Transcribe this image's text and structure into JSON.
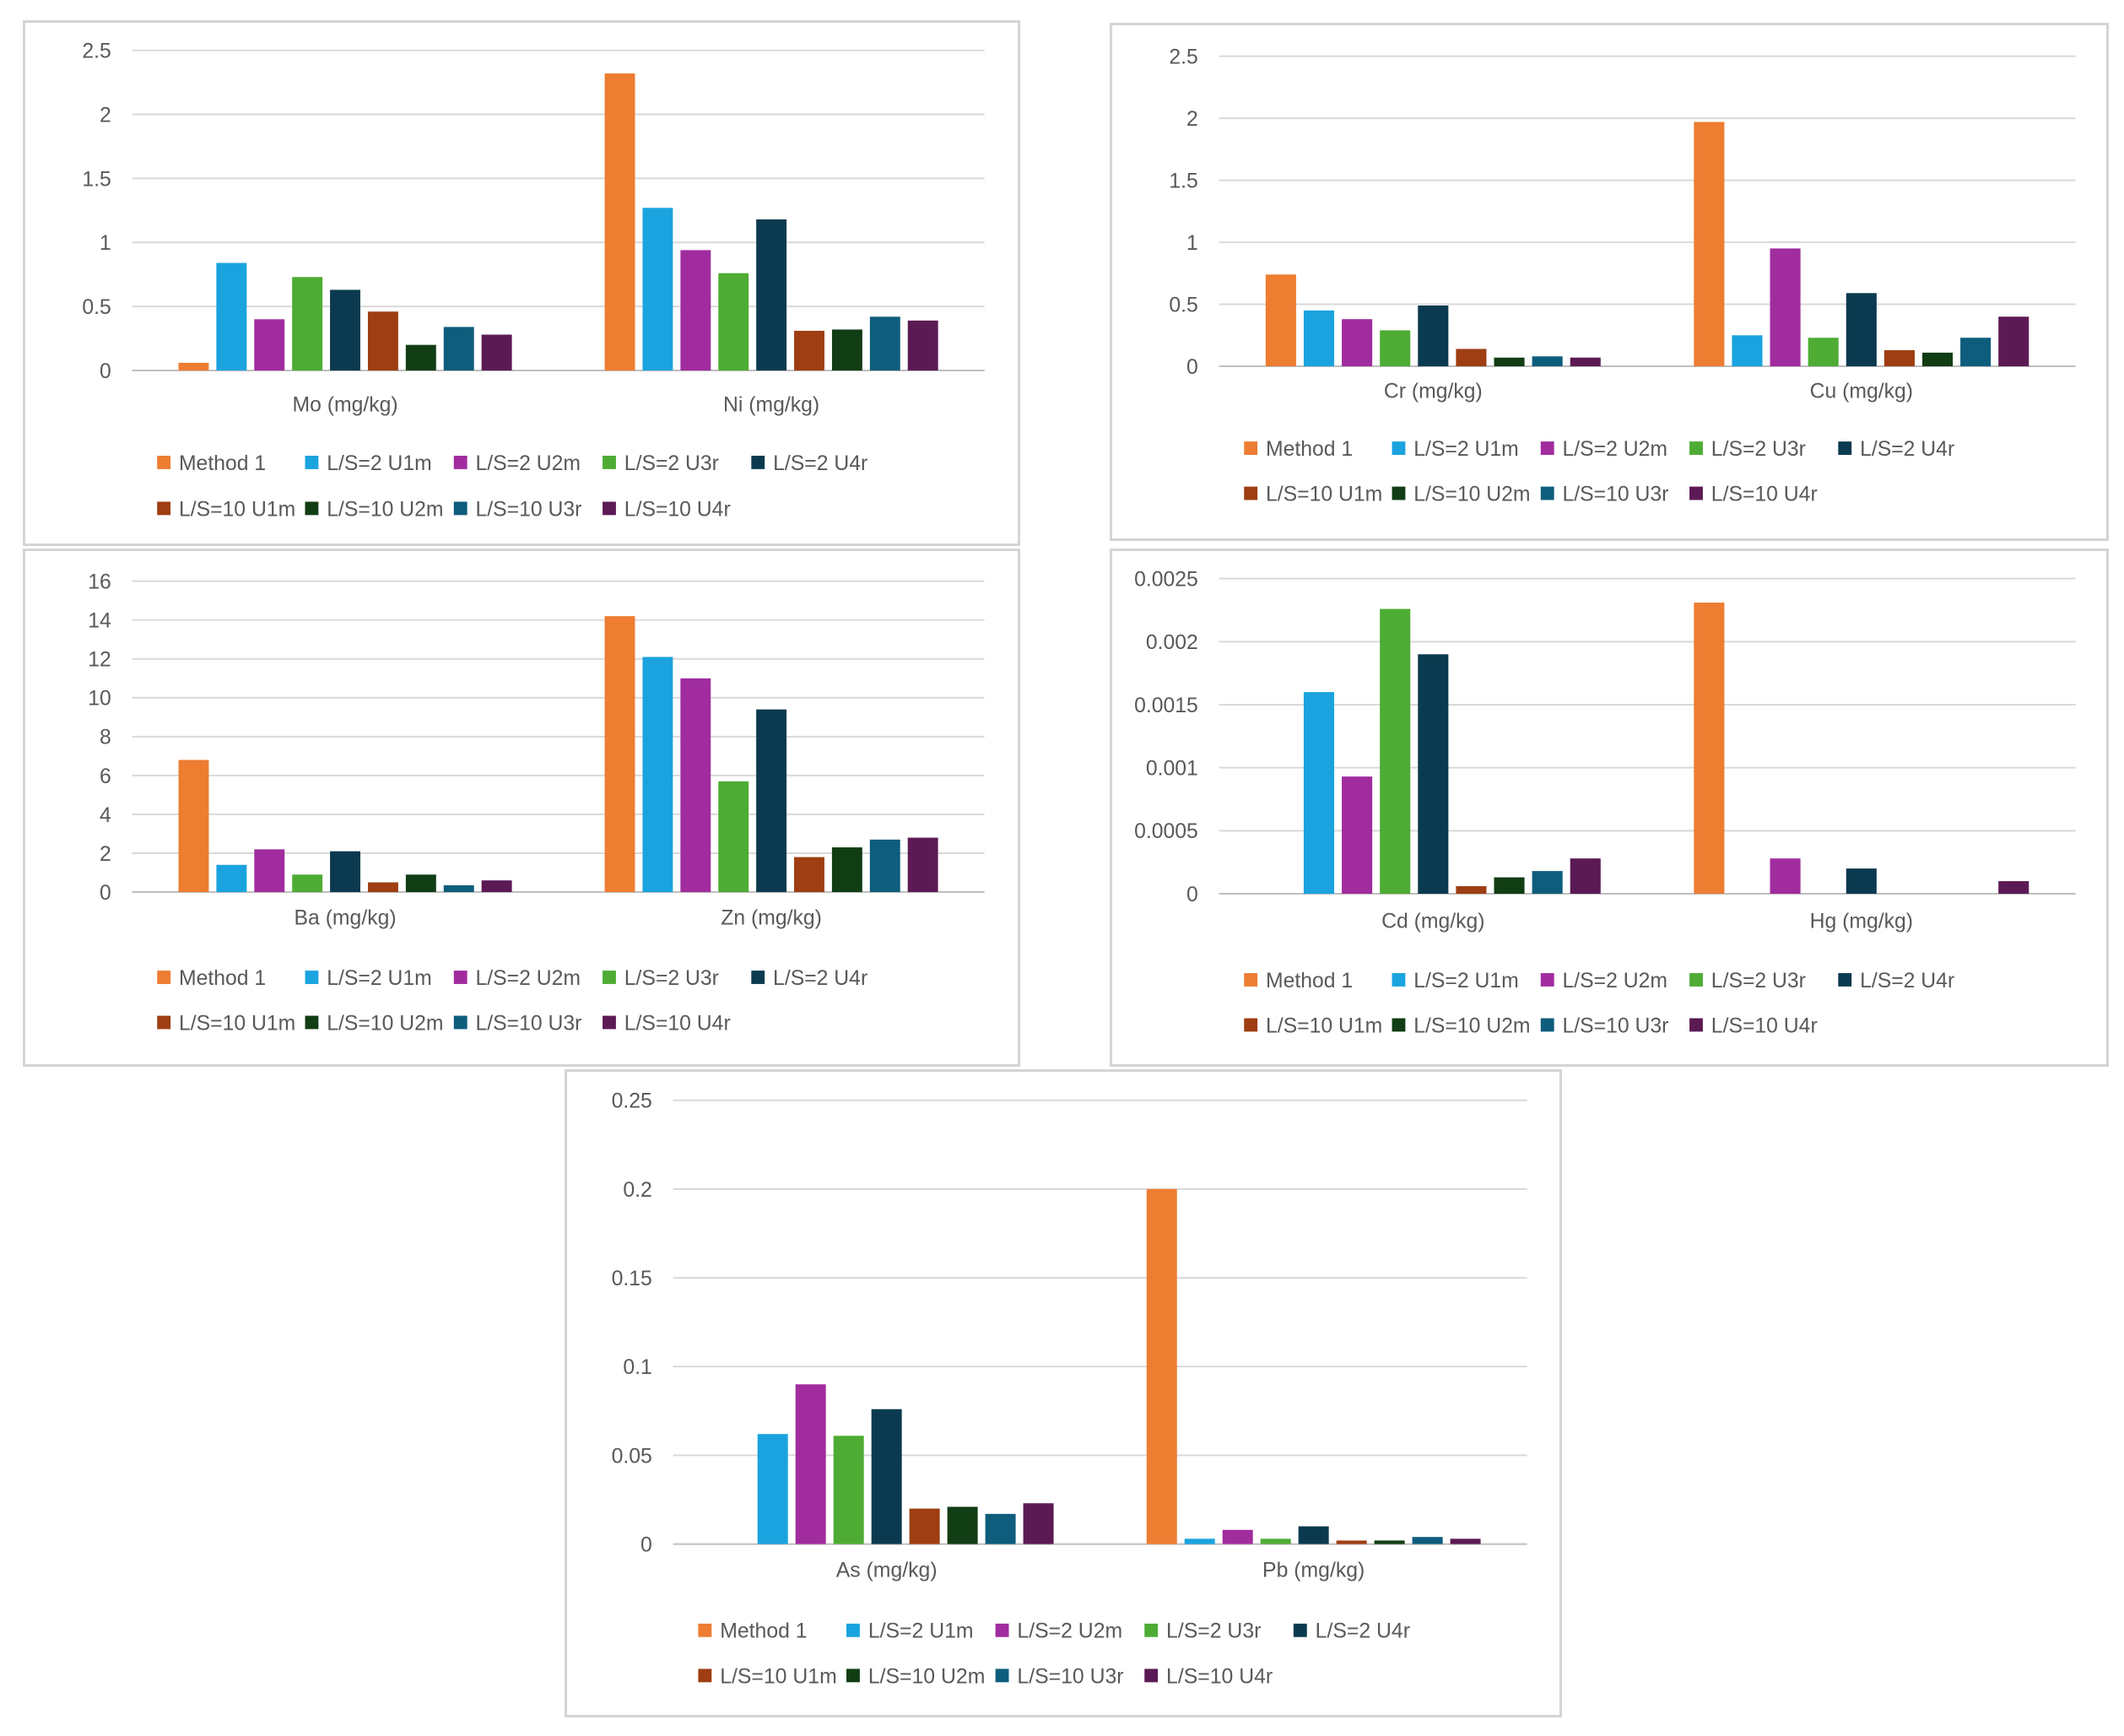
{
  "series_names": [
    "Method 1",
    "L/S=2 U1m",
    "L/S=2 U2m",
    "L/S=2 U3r",
    "L/S=2 U4r",
    "L/S=10 U1m",
    "L/S=10 U2m",
    "L/S=10 U3r",
    "L/S=10 U4r"
  ],
  "series_colors": [
    "#ed7d31",
    "#1aa3df",
    "#a12c9e",
    "#4eac34",
    "#0b3a50",
    "#9e3e12",
    "#113d14",
    "#0e5d7c",
    "#5c1a55"
  ],
  "chart_data": [
    {
      "type": "bar",
      "categories": [
        "Mo (mg/kg)",
        "Ni (mg/kg)"
      ],
      "ylim": [
        0,
        2.5
      ],
      "yticks": [
        "0",
        "0.5",
        "1",
        "1.5",
        "2",
        "2.5"
      ],
      "series": [
        {
          "name": "Method 1",
          "values": [
            0.06,
            2.32
          ]
        },
        {
          "name": "L/S=2 U1m",
          "values": [
            0.84,
            1.27
          ]
        },
        {
          "name": "L/S=2 U2m",
          "values": [
            0.4,
            0.94
          ]
        },
        {
          "name": "L/S=2 U3r",
          "values": [
            0.73,
            0.76
          ]
        },
        {
          "name": "L/S=2 U4r",
          "values": [
            0.63,
            1.18
          ]
        },
        {
          "name": "L/S=10 U1m",
          "values": [
            0.46,
            0.31
          ]
        },
        {
          "name": "L/S=10 U2m",
          "values": [
            0.2,
            0.32
          ]
        },
        {
          "name": "L/S=10 U3r",
          "values": [
            0.34,
            0.42
          ]
        },
        {
          "name": "L/S=10 U4r",
          "values": [
            0.28,
            0.39
          ]
        }
      ]
    },
    {
      "type": "bar",
      "categories": [
        "Cr (mg/kg)",
        "Cu (mg/kg)"
      ],
      "ylim": [
        0,
        2.5
      ],
      "yticks": [
        "0",
        "0.5",
        "1",
        "1.5",
        "2",
        "2.5"
      ],
      "series": [
        {
          "name": "Method 1",
          "values": [
            0.74,
            1.97
          ]
        },
        {
          "name": "L/S=2 U1m",
          "values": [
            0.45,
            0.25
          ]
        },
        {
          "name": "L/S=2 U2m",
          "values": [
            0.38,
            0.95
          ]
        },
        {
          "name": "L/S=2 U3r",
          "values": [
            0.29,
            0.23
          ]
        },
        {
          "name": "L/S=2 U4r",
          "values": [
            0.49,
            0.59
          ]
        },
        {
          "name": "L/S=10 U1m",
          "values": [
            0.14,
            0.13
          ]
        },
        {
          "name": "L/S=10 U2m",
          "values": [
            0.07,
            0.11
          ]
        },
        {
          "name": "L/S=10 U3r",
          "values": [
            0.08,
            0.23
          ]
        },
        {
          "name": "L/S=10 U4r",
          "values": [
            0.07,
            0.4
          ]
        }
      ]
    },
    {
      "type": "bar",
      "categories": [
        "Ba (mg/kg)",
        "Zn (mg/kg)"
      ],
      "ylim": [
        0,
        16
      ],
      "yticks": [
        "0",
        "2",
        "4",
        "6",
        "8",
        "10",
        "12",
        "14",
        "16"
      ],
      "series": [
        {
          "name": "Method 1",
          "values": [
            6.8,
            14.2
          ]
        },
        {
          "name": "L/S=2 U1m",
          "values": [
            1.4,
            12.1
          ]
        },
        {
          "name": "L/S=2 U2m",
          "values": [
            2.2,
            11.0
          ]
        },
        {
          "name": "L/S=2 U3r",
          "values": [
            0.9,
            5.7
          ]
        },
        {
          "name": "L/S=2 U4r",
          "values": [
            2.1,
            9.4
          ]
        },
        {
          "name": "L/S=10 U1m",
          "values": [
            0.5,
            1.8
          ]
        },
        {
          "name": "L/S=10 U2m",
          "values": [
            0.9,
            2.3
          ]
        },
        {
          "name": "L/S=10 U3r",
          "values": [
            0.35,
            2.7
          ]
        },
        {
          "name": "L/S=10 U4r",
          "values": [
            0.6,
            2.8
          ]
        }
      ]
    },
    {
      "type": "bar",
      "categories": [
        "Cd (mg/kg)",
        "Hg (mg/kg)"
      ],
      "ylim": [
        0,
        0.0025
      ],
      "yticks": [
        "0",
        "0.0005",
        "0.001",
        "0.0015",
        "0.002",
        "0.0025"
      ],
      "series": [
        {
          "name": "Method 1",
          "values": [
            0,
            0.00231
          ]
        },
        {
          "name": "L/S=2 U1m",
          "values": [
            0.0016,
            0
          ]
        },
        {
          "name": "L/S=2 U2m",
          "values": [
            0.00093,
            0.00028
          ]
        },
        {
          "name": "L/S=2 U3r",
          "values": [
            0.00226,
            0
          ]
        },
        {
          "name": "L/S=2 U4r",
          "values": [
            0.0019,
            0.0002
          ]
        },
        {
          "name": "L/S=10 U1m",
          "values": [
            6e-05,
            0
          ]
        },
        {
          "name": "L/S=10 U2m",
          "values": [
            0.00013,
            0
          ]
        },
        {
          "name": "L/S=10 U3r",
          "values": [
            0.00018,
            0
          ]
        },
        {
          "name": "L/S=10 U4r",
          "values": [
            0.00028,
            0.0001
          ]
        }
      ]
    },
    {
      "type": "bar",
      "categories": [
        "As (mg/kg)",
        "Pb (mg/kg)"
      ],
      "ylim": [
        0,
        0.25
      ],
      "yticks": [
        "0",
        "0.05",
        "0.1",
        "0.15",
        "0.2",
        "0.25"
      ],
      "series": [
        {
          "name": "Method 1",
          "values": [
            0,
            0.2
          ]
        },
        {
          "name": "L/S=2 U1m",
          "values": [
            0.062,
            0.003
          ]
        },
        {
          "name": "L/S=2 U2m",
          "values": [
            0.09,
            0.008
          ]
        },
        {
          "name": "L/S=2 U3r",
          "values": [
            0.061,
            0.003
          ]
        },
        {
          "name": "L/S=2 U4r",
          "values": [
            0.076,
            0.01
          ]
        },
        {
          "name": "L/S=10 U1m",
          "values": [
            0.02,
            0.002
          ]
        },
        {
          "name": "L/S=10 U2m",
          "values": [
            0.021,
            0.002
          ]
        },
        {
          "name": "L/S=10 U3r",
          "values": [
            0.017,
            0.004
          ]
        },
        {
          "name": "L/S=10 U4r",
          "values": [
            0.023,
            0.003
          ]
        }
      ]
    }
  ]
}
